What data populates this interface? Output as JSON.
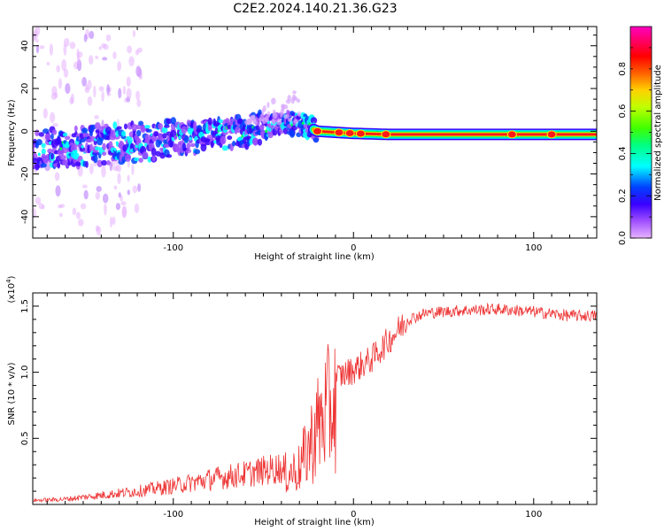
{
  "title": "C2E2.2024.140.21.36.G23",
  "chart_data": [
    {
      "type": "heatmap",
      "title": "C2E2.2024.140.21.36.G23",
      "xlabel": "Height of straight line (km)",
      "ylabel": "Frequency (Hz)",
      "xlim": [
        -178,
        135
      ],
      "ylim": [
        -50,
        49
      ],
      "x_ticks": [
        -100,
        0,
        100
      ],
      "y_ticks": [
        -40,
        -20,
        0,
        20,
        40
      ],
      "colorbar": {
        "label": "Normalized spectral amplitude",
        "range": [
          0.0,
          1.0
        ],
        "ticks": [
          0.0,
          0.2,
          0.4,
          0.6,
          0.8
        ],
        "colormap": [
          "#e6b3ff",
          "#a050ff",
          "#3a00ff",
          "#0040ff",
          "#00ffff",
          "#00ff50",
          "#80ff00",
          "#ffff00",
          "#ff8000",
          "#ff0000",
          "#ff0080",
          "#ff00c0"
        ]
      },
      "ridge_frequency_hz": {
        "x": [
          -178,
          -150,
          -120,
          -100,
          -80,
          -60,
          -45,
          -35,
          -25,
          -20,
          0,
          20,
          50,
          80,
          110,
          135
        ],
        "y": [
          -8,
          -7,
          -5,
          -4,
          -2,
          0,
          3,
          4,
          2,
          0,
          -1,
          -1.5,
          -1.5,
          -1.5,
          -1.5,
          -1.5
        ]
      }
    },
    {
      "type": "line",
      "xlabel": "Height of straight line (km)",
      "ylabel": "SNR (10 * v/v)",
      "y_multiplier": "(x10^4)",
      "y_multiplier_base": "(x10",
      "y_multiplier_exp": "4",
      "xlim": [
        -178,
        135
      ],
      "ylim": [
        0,
        16000
      ],
      "x_ticks": [
        -100,
        0,
        100
      ],
      "y_ticks": [
        0.5,
        1.0,
        1.5
      ],
      "y_tick_labels": [
        "0.5",
        "1.0",
        "1.5"
      ],
      "series": [
        {
          "name": "SNR",
          "color": "#ee3333",
          "x": [
            -178,
            -160,
            -140,
            -120,
            -100,
            -80,
            -60,
            -40,
            -30,
            -25,
            -20,
            -15,
            -10,
            0,
            10,
            20,
            30,
            40,
            60,
            80,
            100,
            120,
            135
          ],
          "y": [
            300,
            400,
            700,
            1000,
            1400,
            1900,
            2300,
            2800,
            3500,
            5500,
            7500,
            9000,
            9800,
            10400,
            11200,
            12700,
            14200,
            14700,
            14900,
            15000,
            14800,
            14500,
            14500
          ]
        }
      ]
    }
  ]
}
